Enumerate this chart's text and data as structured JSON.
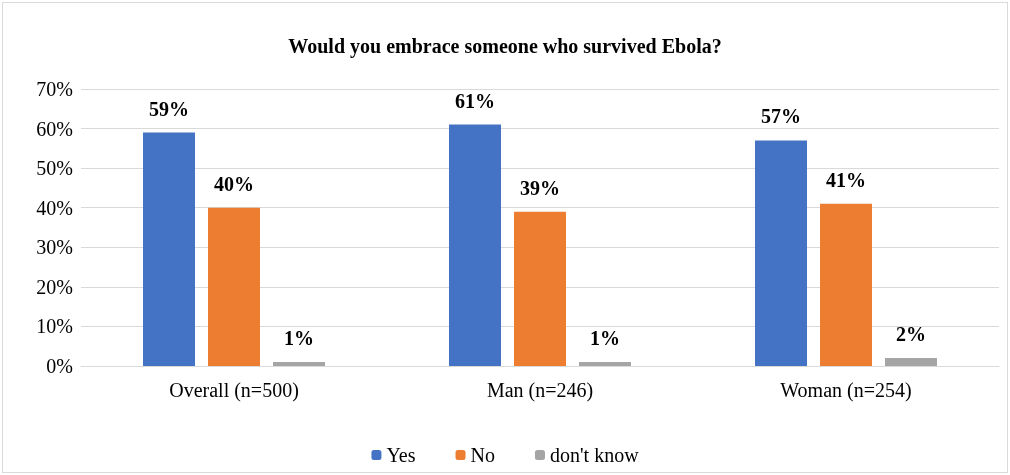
{
  "chart_data": {
    "type": "bar",
    "title": "Would you embrace someone who survived Ebola?",
    "categories": [
      "Overall (n=500)",
      "Man (n=246)",
      "Woman (n=254)"
    ],
    "series": [
      {
        "name": "Yes",
        "color": "#4472c4",
        "values": [
          59,
          61,
          57
        ],
        "value_labels": [
          "59%",
          "61%",
          "57%"
        ]
      },
      {
        "name": "No",
        "color": "#ed7d31",
        "values": [
          40,
          39,
          41
        ],
        "value_labels": [
          "40%",
          "39%",
          "41%"
        ]
      },
      {
        "name": "don't know",
        "color": "#a5a5a5",
        "values": [
          1,
          1,
          2
        ],
        "value_labels": [
          "1%",
          "1%",
          "2%"
        ]
      }
    ],
    "ylim": [
      0,
      70
    ],
    "yticks": [
      {
        "value": 0,
        "label": "0%"
      },
      {
        "value": 10,
        "label": "10%"
      },
      {
        "value": 20,
        "label": "20%"
      },
      {
        "value": 30,
        "label": "30%"
      },
      {
        "value": 40,
        "label": "40%"
      },
      {
        "value": 50,
        "label": "50%"
      },
      {
        "value": 60,
        "label": "60%"
      },
      {
        "value": 70,
        "label": "70%"
      }
    ],
    "grid": "y",
    "legend": "bottom"
  }
}
